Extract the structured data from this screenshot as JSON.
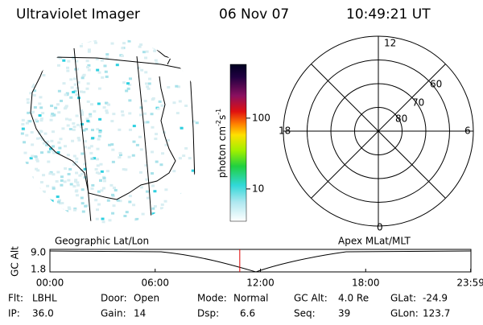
{
  "header": {
    "title": "Ultraviolet Imager",
    "date": "06 Nov 07",
    "time": "10:49:21 UT"
  },
  "colorbar": {
    "label_parts": [
      "photon cm",
      "-2",
      "s",
      "-1"
    ],
    "ticks": [
      10,
      100
    ],
    "lim": [
      3.5,
      575
    ],
    "log": true
  },
  "polar": {
    "mlt_labels": [
      "12",
      "18",
      "6",
      "0"
    ],
    "lat_labels": [
      "60",
      "70",
      "80"
    ]
  },
  "timeline": {
    "left_title": "Geographic Lat/Lon",
    "right_title": "Apex MLat/MLT",
    "y_label": "GC Alt",
    "y_ticks": [
      "9.0",
      "1.8"
    ],
    "x_ticks": [
      "00:00",
      "06:00",
      "12:00",
      "18:00",
      "23:59"
    ]
  },
  "footer": {
    "rows": [
      [
        {
          "label": "Flt:",
          "value": "LBHL"
        },
        {
          "label": "Door:",
          "value": "Open"
        },
        {
          "label": "Mode:",
          "value": "Normal"
        },
        {
          "label": "GC Alt:",
          "value": "4.0 Re"
        },
        {
          "label": "GLat:",
          "value": "-24.9"
        }
      ],
      [
        {
          "label": "IP:",
          "value": "36.0"
        },
        {
          "label": "Gain:",
          "value": "14"
        },
        {
          "label": "Dsp:",
          "value": "6.6"
        },
        {
          "label": "Seq:",
          "value": "39"
        },
        {
          "label": "GLon:",
          "value": "123.7"
        }
      ]
    ]
  }
}
